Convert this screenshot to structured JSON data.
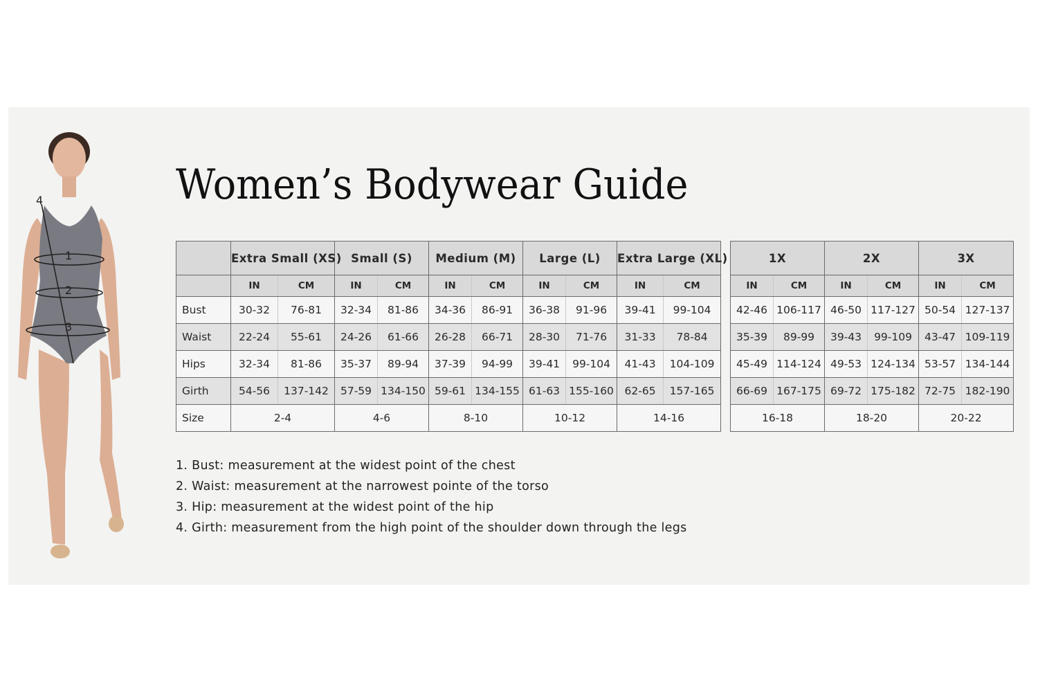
{
  "title": "Women’s Bodywear Guide",
  "figure": {
    "markers": [
      "1",
      "2",
      "3",
      "4"
    ],
    "bodysuit_color": "#7a7a82"
  },
  "colors": {
    "header_bg": "#d9d9d9",
    "row_alt_bg": "#e2e2e2",
    "row_bg": "#f6f6f6",
    "panel_bg": "#f3f3f2"
  },
  "unit_labels": {
    "in": "IN",
    "cm": "CM"
  },
  "row_labels": [
    "Bust",
    "Waist",
    "Hips",
    "Girth",
    "Size"
  ],
  "tables": [
    {
      "sizes": [
        {
          "name": "Extra Small (XS)",
          "bust": [
            "30-32",
            "76-81"
          ],
          "waist": [
            "22-24",
            "55-61"
          ],
          "hips": [
            "32-34",
            "81-86"
          ],
          "girth": [
            "54-56",
            "137-142"
          ],
          "size": "2-4"
        },
        {
          "name": "Small (S)",
          "bust": [
            "32-34",
            "81-86"
          ],
          "waist": [
            "24-26",
            "61-66"
          ],
          "hips": [
            "35-37",
            "89-94"
          ],
          "girth": [
            "57-59",
            "134-150"
          ],
          "size": "4-6"
        },
        {
          "name": "Medium (M)",
          "bust": [
            "34-36",
            "86-91"
          ],
          "waist": [
            "26-28",
            "66-71"
          ],
          "hips": [
            "37-39",
            "94-99"
          ],
          "girth": [
            "59-61",
            "134-155"
          ],
          "size": "8-10"
        },
        {
          "name": "Large (L)",
          "bust": [
            "36-38",
            "91-96"
          ],
          "waist": [
            "28-30",
            "71-76"
          ],
          "hips": [
            "39-41",
            "99-104"
          ],
          "girth": [
            "61-63",
            "155-160"
          ],
          "size": "10-12"
        },
        {
          "name": "Extra Large (XL)",
          "bust": [
            "39-41",
            "99-104"
          ],
          "waist": [
            "31-33",
            "78-84"
          ],
          "hips": [
            "41-43",
            "104-109"
          ],
          "girth": [
            "62-65",
            "157-165"
          ],
          "size": "14-16"
        }
      ]
    },
    {
      "sizes": [
        {
          "name": "1X",
          "bust": [
            "42-46",
            "106-117"
          ],
          "waist": [
            "35-39",
            "89-99"
          ],
          "hips": [
            "45-49",
            "114-124"
          ],
          "girth": [
            "66-69",
            "167-175"
          ],
          "size": "16-18"
        },
        {
          "name": "2X",
          "bust": [
            "46-50",
            "117-127"
          ],
          "waist": [
            "39-43",
            "99-109"
          ],
          "hips": [
            "49-53",
            "124-134"
          ],
          "girth": [
            "69-72",
            "175-182"
          ],
          "size": "18-20"
        },
        {
          "name": "3X",
          "bust": [
            "50-54",
            "127-137"
          ],
          "waist": [
            "43-47",
            "109-119"
          ],
          "hips": [
            "53-57",
            "134-144"
          ],
          "girth": [
            "72-75",
            "182-190"
          ],
          "size": "20-22"
        }
      ]
    }
  ],
  "notes": [
    "1. Bust: measurement at the widest point of the chest",
    "2. Waist: measurement at the narrowest pointe of the torso",
    "3. Hip: measurement at the widest point of the hip",
    "4. Girth: measurement from the high point of the shoulder down through the legs"
  ]
}
